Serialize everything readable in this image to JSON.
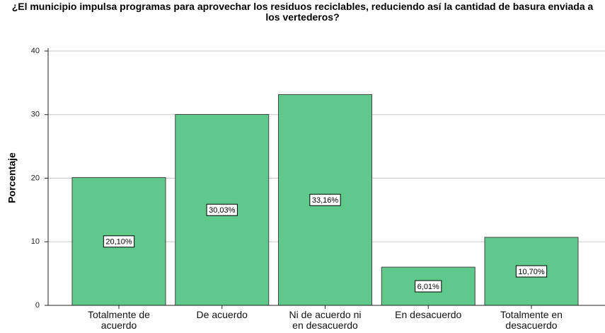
{
  "chart_data": {
    "type": "bar",
    "title": "¿El municipio impulsa programas para aprovechar los residuos reciclables, reduciendo así la cantidad de basura enviada a los vertederos?",
    "y_label": "Porcentaje",
    "categories": [
      "Totalmente de acuerdo",
      "De acuerdo",
      "Ni de acuerdo ni en desacuerdo",
      "En desacuerdo",
      "Totalmente en desacuerdo"
    ],
    "values": [
      20.1,
      30.03,
      33.16,
      6.01,
      10.7
    ],
    "value_labels": [
      "20,10%",
      "30,03%",
      "33,16%",
      "6,01%",
      "10,70%"
    ],
    "color": "#5ec98a",
    "ylim": [
      0,
      40
    ],
    "yticks": [
      0,
      10,
      20,
      30,
      40
    ],
    "grid": true
  }
}
